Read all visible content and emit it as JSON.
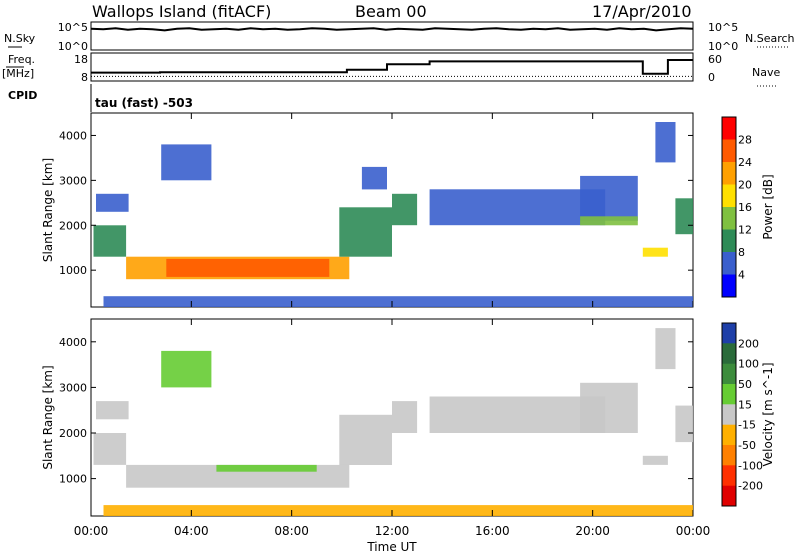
{
  "header": {
    "station": "Wallops Island (fitACF)",
    "beam": "Beam 00",
    "date": "17/Apr/2010"
  },
  "noise_panel": {
    "left_label": "N.Sky",
    "right_label": "N.Search",
    "tick_top": "10^5",
    "tick_bottom": "10^0",
    "sky_series": [
      3.8,
      3.7,
      3.9,
      3.6,
      3.8,
      3.7,
      3.5,
      3.8,
      3.9,
      3.6,
      3.7,
      3.8,
      3.6,
      3.9,
      3.7,
      3.8,
      3.6,
      3.7,
      3.9,
      3.8,
      3.6,
      3.7,
      3.8,
      3.9,
      3.6,
      3.8,
      3.7,
      3.6,
      3.9,
      3.8,
      3.7,
      3.6,
      3.8,
      3.9,
      3.7,
      3.6,
      3.8,
      3.7,
      3.9,
      3.6,
      3.7,
      3.8,
      3.6,
      3.9,
      3.7,
      3.8,
      3.5,
      3.7,
      3.9,
      3.8
    ]
  },
  "freq_panel": {
    "left_label": "Freq.",
    "left_unit": "[MHz]",
    "right_label": "Nave",
    "ticks_left": [
      "18",
      "8"
    ],
    "ticks_right": [
      "60",
      "0"
    ],
    "freq_steps": [
      [
        0,
        11
      ],
      [
        2.75,
        11
      ],
      [
        2.75,
        11.1
      ],
      [
        10.2,
        11.1
      ],
      [
        10.2,
        12.0
      ],
      [
        11.8,
        12.0
      ],
      [
        11.8,
        14.0
      ],
      [
        13.5,
        14.0
      ],
      [
        13.5,
        15.0
      ],
      [
        22,
        15.0
      ],
      [
        22,
        10.6
      ],
      [
        23,
        10.6
      ],
      [
        23,
        15.5
      ],
      [
        24,
        15.5
      ]
    ],
    "nave_value": 10
  },
  "cpid": {
    "label": "CPID",
    "text": "tau (fast) -503"
  },
  "chart_data": [
    {
      "type": "heatmap",
      "name": "Power",
      "ylabel": "Slant Range [km]",
      "xlabel": "Time UT",
      "xlim": [
        0,
        24
      ],
      "ylim": [
        180,
        4500
      ],
      "yticks": [
        "1000",
        "2000",
        "3000",
        "4000"
      ],
      "xticks": [
        "00:00",
        "04:00",
        "08:00",
        "12:00",
        "16:00",
        "20:00",
        "00:00"
      ],
      "colorbar_label": "Power [dB]",
      "colorbar_ticks": [
        "28",
        "24",
        "20",
        "16",
        "12",
        "8",
        "4"
      ],
      "colorbar_colors": [
        "#ff0000",
        "#ff5a00",
        "#ffa000",
        "#ffe000",
        "#7fc040",
        "#2e8b57",
        "#3a5fcd",
        "#0000ff"
      ],
      "regions": [
        {
          "t0": 0.1,
          "t1": 1.4,
          "r0": 1300,
          "r1": 2000,
          "level": 5
        },
        {
          "t0": 0.2,
          "t1": 1.5,
          "r0": 2300,
          "r1": 2700,
          "level": 6
        },
        {
          "t0": 1.4,
          "t1": 10.3,
          "r0": 800,
          "r1": 1300,
          "level": 2
        },
        {
          "t0": 3.0,
          "t1": 9.5,
          "r0": 850,
          "r1": 1250,
          "level": 1
        },
        {
          "t0": 2.8,
          "t1": 4.8,
          "r0": 3000,
          "r1": 3800,
          "level": 6
        },
        {
          "t0": 9.9,
          "t1": 12.0,
          "r0": 1300,
          "r1": 2400,
          "level": 5
        },
        {
          "t0": 10.8,
          "t1": 11.8,
          "r0": 2800,
          "r1": 3300,
          "level": 6
        },
        {
          "t0": 12.0,
          "t1": 13.0,
          "r0": 2000,
          "r1": 2700,
          "level": 5
        },
        {
          "t0": 13.5,
          "t1": 20.5,
          "r0": 2000,
          "r1": 2800,
          "level": 6
        },
        {
          "t0": 19.5,
          "t1": 21.8,
          "r0": 2100,
          "r1": 3100,
          "level": 6
        },
        {
          "t0": 19.5,
          "t1": 21.8,
          "r0": 2000,
          "r1": 2200,
          "level": 4
        },
        {
          "t0": 22.0,
          "t1": 23.0,
          "r0": 1300,
          "r1": 1500,
          "level": 3
        },
        {
          "t0": 23.3,
          "t1": 24.0,
          "r0": 1800,
          "r1": 2600,
          "level": 5
        },
        {
          "t0": 22.5,
          "t1": 23.3,
          "r0": 3400,
          "r1": 4300,
          "level": 6
        },
        {
          "t0": 0.5,
          "t1": 24.0,
          "r0": 180,
          "r1": 420,
          "level": 6
        }
      ]
    },
    {
      "type": "heatmap",
      "name": "Velocity",
      "ylabel": "Slant Range [km]",
      "xlabel": "Time UT",
      "xlim": [
        0,
        24
      ],
      "ylim": [
        180,
        4500
      ],
      "yticks": [
        "1000",
        "2000",
        "3000",
        "4000"
      ],
      "xticks": [
        "00:00",
        "04:00",
        "08:00",
        "12:00",
        "16:00",
        "20:00",
        "00:00"
      ],
      "colorbar_label": "Velocity [m s^-1]",
      "colorbar_ticks": [
        "200",
        "100",
        "50",
        "15",
        "-15",
        "-50",
        "-100",
        "-200"
      ],
      "colorbar_colors": [
        "#1e3fa8",
        "#2a6b3a",
        "#3c8c3c",
        "#66cc33",
        "#c8c8c8",
        "#ffb000",
        "#ff8000",
        "#ff3000",
        "#e00000"
      ],
      "regions": [
        {
          "t0": 0.1,
          "t1": 1.4,
          "r0": 1300,
          "r1": 2000,
          "level": 4
        },
        {
          "t0": 0.2,
          "t1": 1.5,
          "r0": 2300,
          "r1": 2700,
          "level": 4
        },
        {
          "t0": 1.4,
          "t1": 10.3,
          "r0": 800,
          "r1": 1300,
          "level": 4
        },
        {
          "t0": 5.0,
          "t1": 9.0,
          "r0": 1150,
          "r1": 1300,
          "level": 3
        },
        {
          "t0": 2.8,
          "t1": 4.8,
          "r0": 3000,
          "r1": 3800,
          "level": 3
        },
        {
          "t0": 9.9,
          "t1": 12.0,
          "r0": 1300,
          "r1": 2400,
          "level": 4
        },
        {
          "t0": 12.0,
          "t1": 13.0,
          "r0": 2000,
          "r1": 2700,
          "level": 4
        },
        {
          "t0": 13.5,
          "t1": 20.5,
          "r0": 2000,
          "r1": 2800,
          "level": 4
        },
        {
          "t0": 19.5,
          "t1": 21.8,
          "r0": 2000,
          "r1": 3100,
          "level": 4
        },
        {
          "t0": 22.0,
          "t1": 23.0,
          "r0": 1300,
          "r1": 1500,
          "level": 4
        },
        {
          "t0": 23.3,
          "t1": 24.0,
          "r0": 1800,
          "r1": 2600,
          "level": 4
        },
        {
          "t0": 22.5,
          "t1": 23.3,
          "r0": 3400,
          "r1": 4300,
          "level": 4
        },
        {
          "t0": 0.5,
          "t1": 24.0,
          "r0": 180,
          "r1": 420,
          "level": 5
        }
      ]
    }
  ]
}
